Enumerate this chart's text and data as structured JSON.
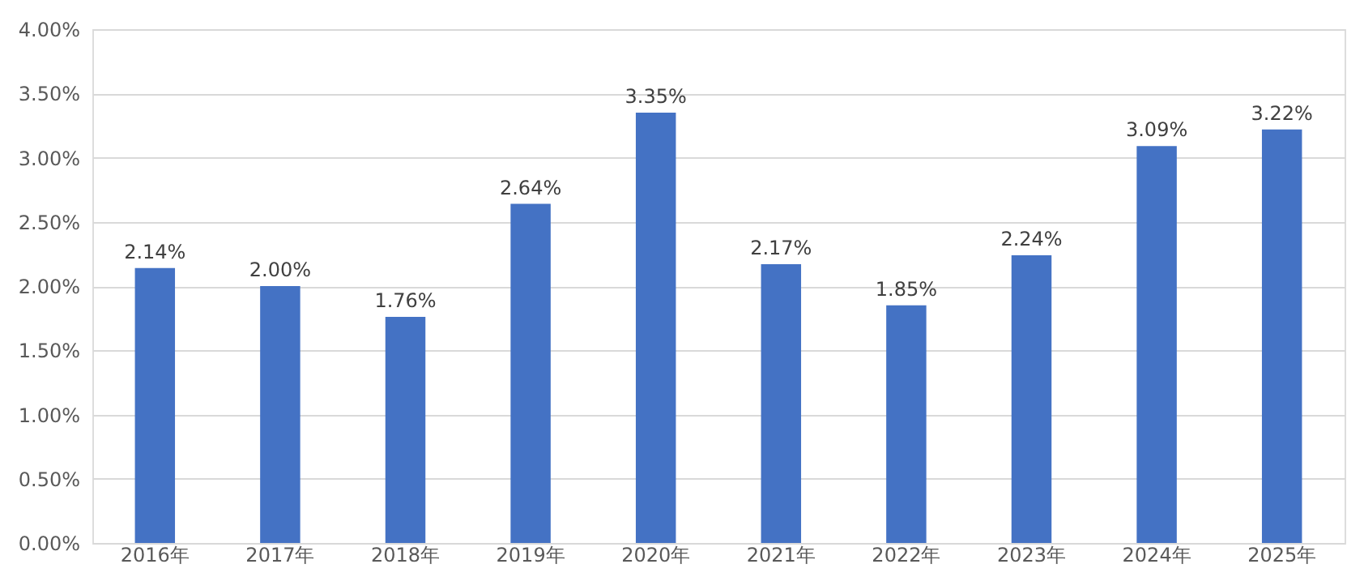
{
  "chart_data": {
    "type": "bar",
    "categories": [
      "2016年",
      "2017年",
      "2018年",
      "2019年",
      "2020年",
      "2021年",
      "2022年",
      "2023年",
      "2024年",
      "2025年"
    ],
    "values": [
      2.14,
      2.0,
      1.76,
      2.64,
      3.35,
      2.17,
      1.85,
      2.24,
      3.09,
      3.22
    ],
    "value_labels": [
      "2.14%",
      "2.00%",
      "1.76%",
      "2.64%",
      "3.35%",
      "2.17%",
      "1.85%",
      "2.24%",
      "3.09%",
      "3.22%"
    ],
    "color": "#4472c4",
    "ylim": [
      0,
      4
    ],
    "yticks": [
      {
        "value": 0,
        "label": "0.00%"
      },
      {
        "value": 0.5,
        "label": "0.50%"
      },
      {
        "value": 1,
        "label": "1.00%"
      },
      {
        "value": 1.5,
        "label": "1.50%"
      },
      {
        "value": 2,
        "label": "2.00%"
      },
      {
        "value": 2.5,
        "label": "2.50%"
      },
      {
        "value": 3,
        "label": "3.00%"
      },
      {
        "value": 3.5,
        "label": "3.50%"
      },
      {
        "value": 4,
        "label": "4.00%"
      }
    ],
    "grid": "y"
  }
}
